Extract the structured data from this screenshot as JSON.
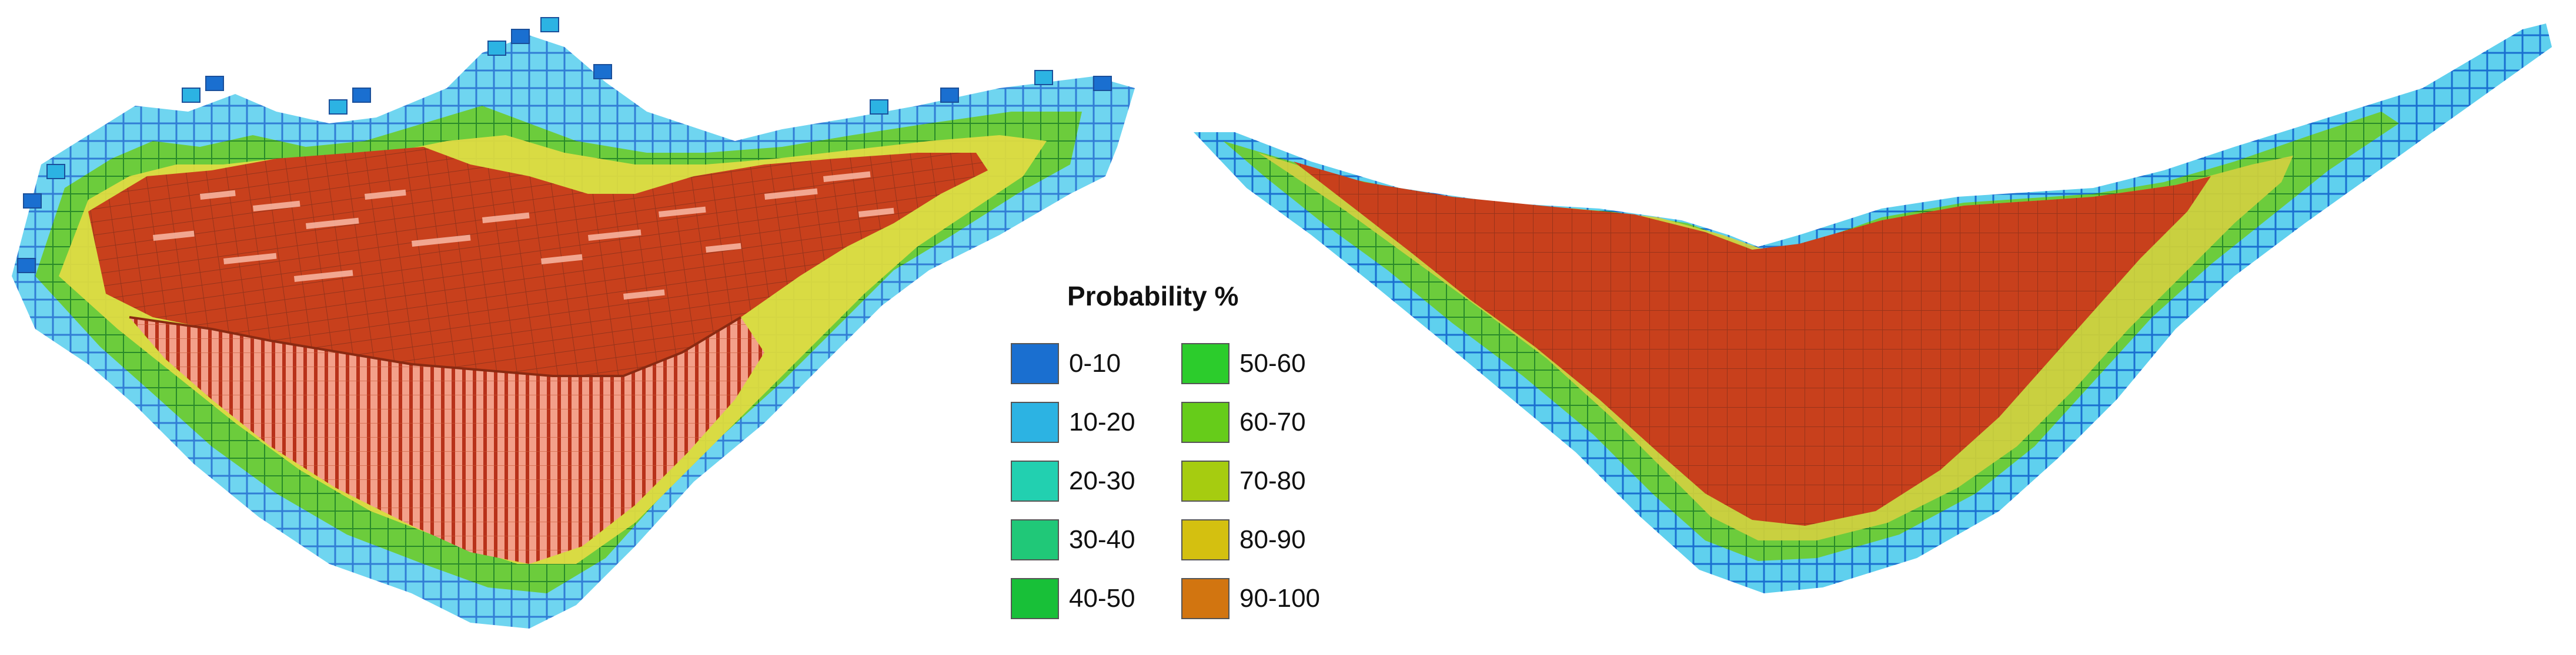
{
  "figure": {
    "left_panel": "3D block model view",
    "right_panel": "cross-section view"
  },
  "legend": {
    "title": "Probability %",
    "items": [
      {
        "label": "0-10",
        "color": "#1a6fd0"
      },
      {
        "label": "10-20",
        "color": "#2cb3e3"
      },
      {
        "label": "20-30",
        "color": "#22d0b0"
      },
      {
        "label": "30-40",
        "color": "#20c878"
      },
      {
        "label": "40-50",
        "color": "#18c038"
      },
      {
        "label": "50-60",
        "color": "#2ccc2c"
      },
      {
        "label": "60-70",
        "color": "#66cc1a"
      },
      {
        "label": "70-80",
        "color": "#a6cc10"
      },
      {
        "label": "80-90",
        "color": "#d4c010"
      },
      {
        "label": "90-100",
        "color": "#d27510"
      }
    ]
  },
  "palette": {
    "red_block": "#c8401c",
    "pale_red": "#f3a08a",
    "grid_line": "#6b2a18",
    "edge_blue": "#1a6fd0",
    "edge_cyan": "#2cb3e3",
    "edge_green": "#5cc43c",
    "edge_yellow": "#d6d040"
  }
}
